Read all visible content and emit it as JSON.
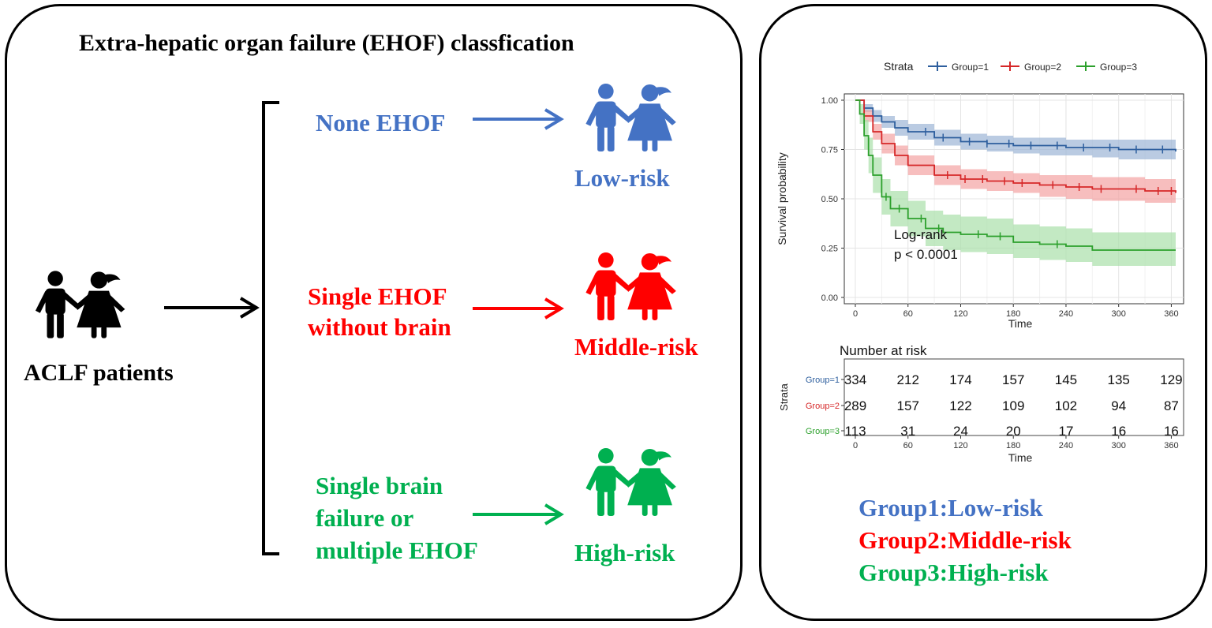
{
  "diagram": {
    "title": "Extra-hepatic organ failure (EHOF) classfication",
    "patients_label": "ACLF patients",
    "branches": [
      {
        "line1": "None EHOF",
        "line2": "",
        "line3": "",
        "risk": "Low-risk",
        "color": "#4472C4"
      },
      {
        "line1": "Single EHOF",
        "line2": "without brain",
        "line3": "",
        "risk": "Middle-risk",
        "color": "#FF0000"
      },
      {
        "line1": "Single brain",
        "line2": "failure or",
        "line3": "multiple EHOF",
        "risk": "High-risk",
        "color": "#00B050"
      }
    ]
  },
  "chart_data": {
    "type": "line",
    "subtype": "kaplan-meier",
    "legend_title": "Strata",
    "legend_position": "top",
    "xlabel": "Time",
    "ylabel": "Survival probability",
    "xlim": [
      0,
      365
    ],
    "ylim": [
      0,
      1
    ],
    "x_ticks": [
      0,
      60,
      120,
      180,
      240,
      300,
      360
    ],
    "y_ticks": [
      0.0,
      0.25,
      0.5,
      0.75,
      1.0
    ],
    "y_tick_labels": [
      "0.00",
      "0.25",
      "0.50",
      "0.75",
      "1.00"
    ],
    "grid": true,
    "annotation_line1": "Log-rank",
    "annotation_line2": "p < 0.0001",
    "series": [
      {
        "name": "Group=1",
        "color": "#2E5F9E",
        "band": "#9DB5D6",
        "x": [
          0,
          10,
          20,
          30,
          45,
          60,
          90,
          120,
          150,
          180,
          210,
          240,
          270,
          300,
          330,
          365
        ],
        "y": [
          1.0,
          0.96,
          0.92,
          0.89,
          0.86,
          0.84,
          0.81,
          0.79,
          0.78,
          0.77,
          0.77,
          0.76,
          0.76,
          0.75,
          0.75,
          0.74
        ],
        "lower": [
          1.0,
          0.94,
          0.89,
          0.86,
          0.82,
          0.8,
          0.77,
          0.75,
          0.74,
          0.73,
          0.72,
          0.72,
          0.71,
          0.7,
          0.7,
          0.69
        ],
        "upper": [
          1.0,
          0.98,
          0.95,
          0.92,
          0.9,
          0.88,
          0.85,
          0.83,
          0.82,
          0.81,
          0.81,
          0.8,
          0.8,
          0.8,
          0.8,
          0.79
        ],
        "censor_x": [
          80,
          100,
          130,
          150,
          175,
          200,
          230,
          260,
          290,
          320,
          350
        ]
      },
      {
        "name": "Group=2",
        "color": "#D62728",
        "band": "#F4A3A3",
        "x": [
          0,
          10,
          20,
          30,
          45,
          60,
          90,
          120,
          150,
          180,
          210,
          240,
          270,
          300,
          330,
          365
        ],
        "y": [
          1.0,
          0.92,
          0.84,
          0.78,
          0.72,
          0.67,
          0.62,
          0.6,
          0.59,
          0.58,
          0.57,
          0.56,
          0.55,
          0.55,
          0.54,
          0.53
        ],
        "lower": [
          1.0,
          0.89,
          0.8,
          0.73,
          0.67,
          0.62,
          0.57,
          0.55,
          0.54,
          0.53,
          0.51,
          0.5,
          0.49,
          0.49,
          0.48,
          0.47
        ],
        "upper": [
          1.0,
          0.95,
          0.88,
          0.83,
          0.77,
          0.72,
          0.67,
          0.65,
          0.64,
          0.63,
          0.62,
          0.62,
          0.61,
          0.61,
          0.6,
          0.59
        ],
        "censor_x": [
          105,
          125,
          145,
          170,
          190,
          225,
          255,
          280,
          320,
          345,
          360
        ]
      },
      {
        "name": "Group=3",
        "color": "#2CA02C",
        "band": "#A9E0A9",
        "x": [
          0,
          5,
          10,
          15,
          20,
          30,
          40,
          60,
          80,
          100,
          120,
          150,
          180,
          210,
          240,
          270,
          365
        ],
        "y": [
          1.0,
          0.93,
          0.82,
          0.72,
          0.62,
          0.51,
          0.45,
          0.4,
          0.35,
          0.33,
          0.32,
          0.31,
          0.28,
          0.27,
          0.26,
          0.24,
          0.24
        ],
        "lower": [
          1.0,
          0.88,
          0.75,
          0.63,
          0.53,
          0.42,
          0.36,
          0.31,
          0.26,
          0.24,
          0.23,
          0.22,
          0.2,
          0.19,
          0.18,
          0.16,
          0.16
        ],
        "upper": [
          1.0,
          0.98,
          0.9,
          0.81,
          0.71,
          0.6,
          0.54,
          0.49,
          0.44,
          0.42,
          0.41,
          0.4,
          0.37,
          0.36,
          0.35,
          0.33,
          0.33
        ],
        "censor_x": [
          35,
          50,
          75,
          95,
          140,
          165,
          230
        ]
      }
    ],
    "risk_table": {
      "title": "Number at risk",
      "ylabel": "Strata",
      "xlabel": "Time",
      "times": [
        0,
        60,
        120,
        180,
        240,
        300,
        360
      ],
      "rows": [
        {
          "name": "Group=1",
          "color": "#2E5F9E",
          "values": [
            334,
            212,
            174,
            157,
            145,
            135,
            129
          ]
        },
        {
          "name": "Group=2",
          "color": "#D62728",
          "values": [
            289,
            157,
            122,
            109,
            102,
            94,
            87
          ]
        },
        {
          "name": "Group=3",
          "color": "#2CA02C",
          "values": [
            113,
            31,
            24,
            20,
            17,
            16,
            16
          ]
        }
      ]
    }
  },
  "group_legend": [
    {
      "label": "Group1:Low-risk",
      "color": "#4472C4"
    },
    {
      "label": "Group2:Middle-risk",
      "color": "#FF0000"
    },
    {
      "label": "Group3:High-risk",
      "color": "#00B050"
    }
  ]
}
